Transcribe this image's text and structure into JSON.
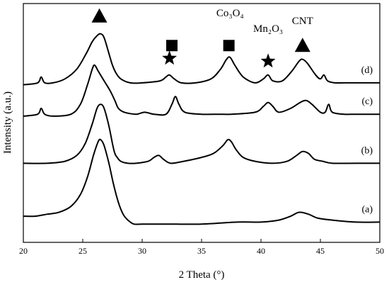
{
  "chart_data": {
    "type": "line",
    "title": "",
    "xlabel": "2 Theta (°)",
    "ylabel": "Intensity (a.u.)",
    "xlim": [
      20,
      50
    ],
    "xticks": [
      20,
      25,
      30,
      35,
      40,
      45,
      50
    ],
    "yticks_shown": false,
    "grid": false,
    "legend": "none; curves labelled at right end",
    "series": [
      {
        "name": "(a)",
        "x": [
          20,
          21,
          22,
          23,
          24,
          24.8,
          25.4,
          25.9,
          26.3,
          26.5,
          26.8,
          27.2,
          27.6,
          28.0,
          28.4,
          28.8,
          29.3,
          30,
          32,
          35,
          38,
          40,
          41.5,
          42.5,
          43.2,
          44,
          44.8,
          46,
          48,
          50
        ],
        "y": [
          0.09,
          0.09,
          0.1,
          0.11,
          0.14,
          0.2,
          0.29,
          0.4,
          0.47,
          0.48,
          0.45,
          0.36,
          0.25,
          0.16,
          0.1,
          0.07,
          0.05,
          0.05,
          0.05,
          0.05,
          0.06,
          0.06,
          0.07,
          0.09,
          0.11,
          0.1,
          0.08,
          0.07,
          0.06,
          0.06
        ]
      },
      {
        "name": "(b)",
        "x": [
          20,
          22,
          23.5,
          24.5,
          25.2,
          25.8,
          26.2,
          26.5,
          26.8,
          27.2,
          27.5,
          27.7,
          27.9,
          28.2,
          28.8,
          29.5,
          30.5,
          31.0,
          31.4,
          31.8,
          32.4,
          33.5,
          35,
          36,
          36.8,
          37.2,
          37.5,
          37.9,
          38.5,
          39.5,
          41,
          42.2,
          43.0,
          43.5,
          44.0,
          44.5,
          45.2,
          46,
          48,
          50
        ],
        "y": [
          0.36,
          0.36,
          0.37,
          0.4,
          0.46,
          0.56,
          0.64,
          0.66,
          0.64,
          0.55,
          0.46,
          0.41,
          0.39,
          0.37,
          0.36,
          0.36,
          0.37,
          0.39,
          0.4,
          0.38,
          0.36,
          0.37,
          0.39,
          0.41,
          0.45,
          0.48,
          0.47,
          0.43,
          0.39,
          0.37,
          0.36,
          0.37,
          0.4,
          0.42,
          0.41,
          0.38,
          0.37,
          0.36,
          0.36,
          0.36
        ]
      },
      {
        "name": "(c)",
        "x": [
          20,
          21.2,
          21.5,
          21.8,
          22.5,
          24,
          24.8,
          25.4,
          25.8,
          26.0,
          26.3,
          26.8,
          27.3,
          27.7,
          28.0,
          28.5,
          29.5,
          30.2,
          31,
          32,
          32.5,
          32.8,
          33.1,
          33.6,
          35,
          36.5,
          37.5,
          39.5,
          40.2,
          40.6,
          41.0,
          41.5,
          42.5,
          43.3,
          43.8,
          44.3,
          45,
          45.4,
          45.7,
          46.0,
          47,
          48,
          50
        ],
        "y": [
          0.6,
          0.61,
          0.64,
          0.61,
          0.6,
          0.61,
          0.66,
          0.76,
          0.84,
          0.86,
          0.83,
          0.78,
          0.73,
          0.68,
          0.64,
          0.62,
          0.61,
          0.62,
          0.61,
          0.61,
          0.66,
          0.7,
          0.66,
          0.62,
          0.61,
          0.61,
          0.61,
          0.62,
          0.65,
          0.67,
          0.65,
          0.62,
          0.64,
          0.67,
          0.68,
          0.66,
          0.62,
          0.62,
          0.66,
          0.62,
          0.61,
          0.61,
          0.61
        ]
      },
      {
        "name": "(d)",
        "x": [
          20,
          21.2,
          21.5,
          21.8,
          22.5,
          23.5,
          24.5,
          25.3,
          25.8,
          26.2,
          26.5,
          26.8,
          27.2,
          27.5,
          27.8,
          28.2,
          29,
          30,
          31.5,
          32.0,
          32.3,
          32.7,
          33.3,
          34.5,
          35.8,
          36.6,
          37.1,
          37.4,
          37.8,
          38.5,
          39.5,
          40.2,
          40.6,
          41.0,
          41.8,
          42.6,
          43.2,
          43.5,
          43.9,
          44.6,
          45.0,
          45.3,
          45.6,
          46.2,
          47,
          48,
          50
        ],
        "y": [
          0.76,
          0.77,
          0.8,
          0.77,
          0.77,
          0.79,
          0.84,
          0.92,
          0.98,
          1.01,
          1.02,
          1.0,
          0.92,
          0.86,
          0.82,
          0.79,
          0.77,
          0.77,
          0.78,
          0.8,
          0.81,
          0.79,
          0.77,
          0.77,
          0.79,
          0.84,
          0.89,
          0.9,
          0.86,
          0.8,
          0.77,
          0.79,
          0.81,
          0.78,
          0.78,
          0.83,
          0.88,
          0.89,
          0.87,
          0.81,
          0.79,
          0.81,
          0.78,
          0.77,
          0.77,
          0.77,
          0.77
        ]
      }
    ],
    "annotations": [
      {
        "text": "Co₃O₄",
        "x": 37.4,
        "y": 1.11
      },
      {
        "text": "Mn₂O₃",
        "x": 40.6,
        "y": 1.03
      },
      {
        "text": "CNT",
        "x": 43.5,
        "y": 1.07
      }
    ],
    "markers": [
      {
        "shape": "triangle",
        "x": 26.4,
        "y": 1.11
      },
      {
        "shape": "square",
        "x": 32.5,
        "y": 0.96
      },
      {
        "shape": "star",
        "x": 32.3,
        "y": 0.895
      },
      {
        "shape": "square",
        "x": 37.3,
        "y": 0.96
      },
      {
        "shape": "star",
        "x": 40.6,
        "y": 0.88
      },
      {
        "shape": "triangle",
        "x": 43.5,
        "y": 0.96
      }
    ]
  }
}
